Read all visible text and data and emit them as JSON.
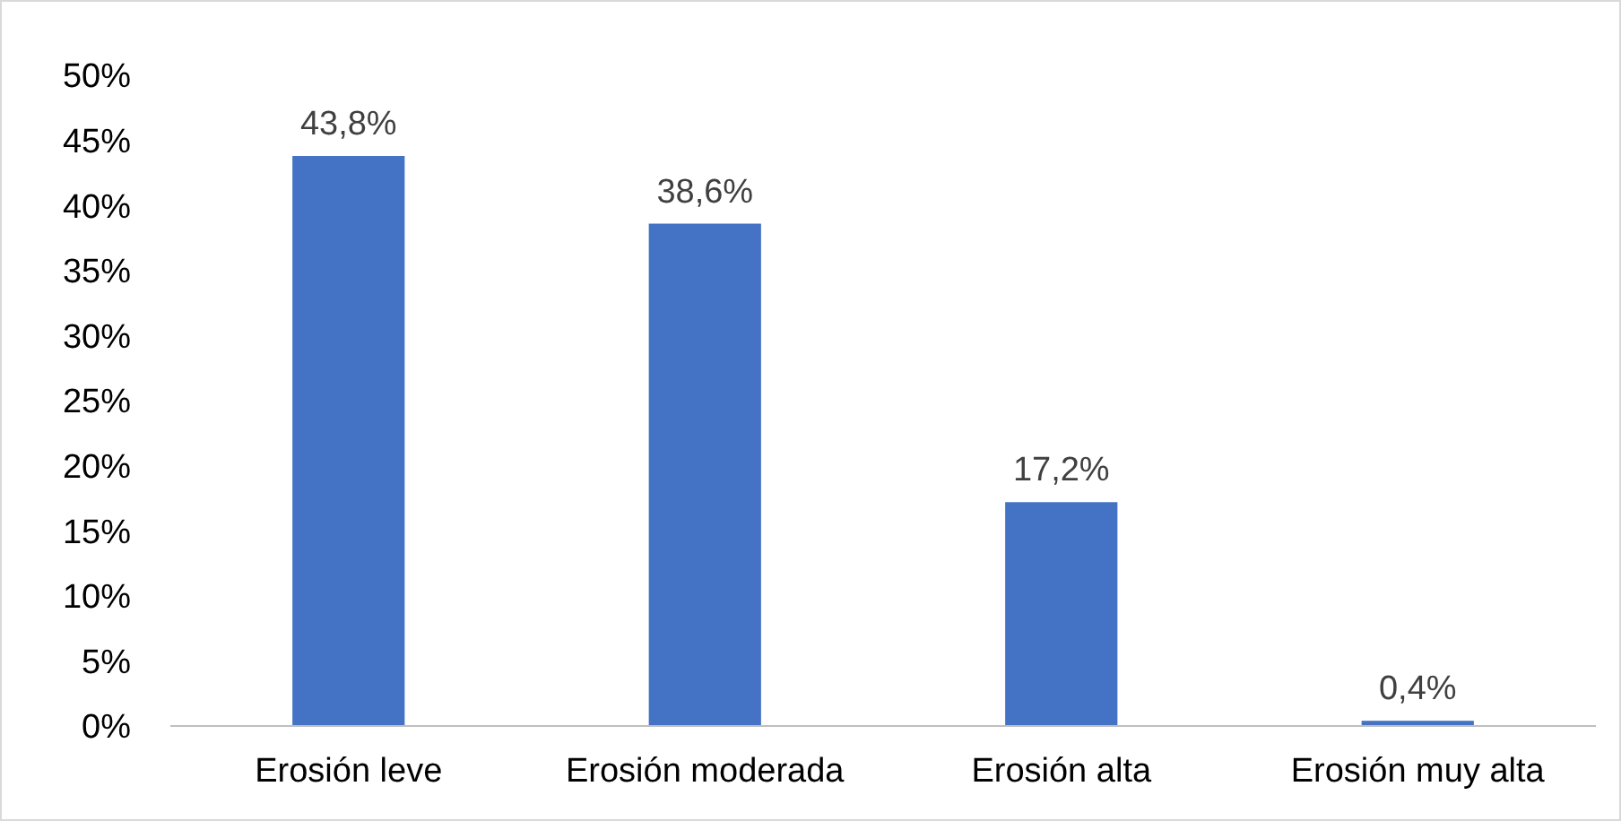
{
  "chart_data": {
    "type": "bar",
    "categories": [
      "Erosión leve",
      "Erosión moderada",
      "Erosión alta",
      "Erosión muy alta"
    ],
    "values": [
      43.8,
      38.6,
      17.2,
      0.4
    ],
    "color": "#4472c4",
    "value_labels": [
      "43,8%",
      "38,6%",
      "17,2%",
      "0,4%"
    ],
    "ylim": [
      0,
      50
    ],
    "yticks": [
      {
        "value": 0,
        "label": "0%"
      },
      {
        "value": 5,
        "label": "5%"
      },
      {
        "value": 10,
        "label": "10%"
      },
      {
        "value": 15,
        "label": "15%"
      },
      {
        "value": 20,
        "label": "20%"
      },
      {
        "value": 25,
        "label": "25%"
      },
      {
        "value": 30,
        "label": "30%"
      },
      {
        "value": 35,
        "label": "35%"
      },
      {
        "value": 40,
        "label": "40%"
      },
      {
        "value": 45,
        "label": "45%"
      },
      {
        "value": 50,
        "label": "50%"
      }
    ],
    "grid": false
  }
}
